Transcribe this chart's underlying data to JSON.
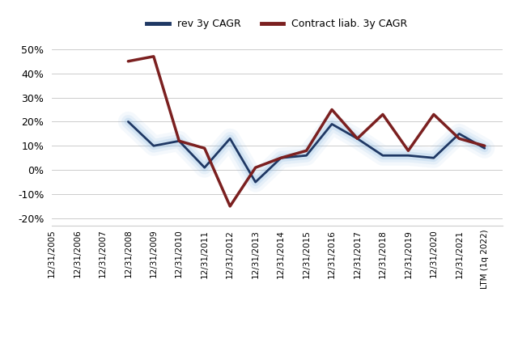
{
  "labels": [
    "12/31/2005",
    "12/31/2006",
    "12/31/2007",
    "12/31/2008",
    "12/31/2009",
    "12/31/2010",
    "12/31/2011",
    "12/31/2012",
    "12/31/2013",
    "12/31/2014",
    "12/31/2015",
    "12/31/2016",
    "12/31/2017",
    "12/31/2018",
    "12/31/2019",
    "12/31/2020",
    "12/31/2021",
    "LTM (1q 2022)"
  ],
  "rev_cagr": [
    null,
    null,
    null,
    0.2,
    0.1,
    0.12,
    0.01,
    0.13,
    -0.05,
    0.05,
    0.06,
    0.19,
    0.13,
    0.06,
    0.06,
    0.05,
    0.15,
    0.09
  ],
  "contract_cagr": [
    null,
    null,
    null,
    0.45,
    0.47,
    0.12,
    0.09,
    -0.15,
    0.01,
    0.05,
    0.08,
    0.25,
    0.13,
    0.23,
    0.08,
    0.23,
    0.13,
    0.1
  ],
  "rev_color": "#1F3864",
  "rev_glow_color": "#7AB0E0",
  "contract_color": "#7B2020",
  "rev_label": "rev 3y CAGR",
  "contract_label": "Contract liab. 3y CAGR",
  "ylim": [
    -0.23,
    0.56
  ],
  "yticks": [
    -0.2,
    -0.1,
    0.0,
    0.1,
    0.2,
    0.3,
    0.4,
    0.5
  ],
  "background_color": "#ffffff",
  "grid_color": "#cccccc"
}
